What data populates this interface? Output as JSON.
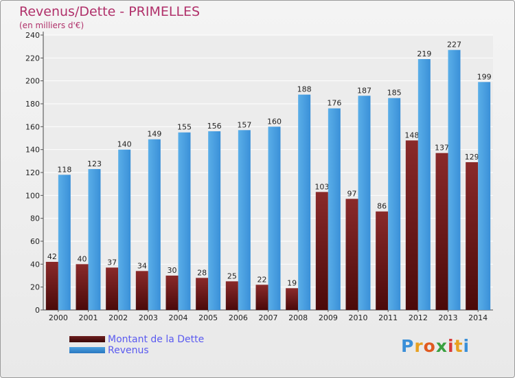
{
  "header": {
    "title": "Revenus/Dette - PRIMELLES",
    "subtitle": "(en milliers d'€)"
  },
  "chart_data": {
    "type": "bar",
    "categories": [
      "2000",
      "2001",
      "2002",
      "2003",
      "2004",
      "2005",
      "2006",
      "2007",
      "2008",
      "2009",
      "2010",
      "2011",
      "2012",
      "2013",
      "2014"
    ],
    "series": [
      {
        "name": "Montant de la Dette",
        "values": [
          42,
          40,
          37,
          34,
          30,
          28,
          25,
          22,
          19,
          103,
          97,
          86,
          148,
          137,
          129
        ],
        "color": "#6e1e1e"
      },
      {
        "name": "Revenus",
        "values": [
          118,
          123,
          140,
          149,
          155,
          156,
          157,
          160,
          188,
          176,
          187,
          185,
          219,
          227,
          199
        ],
        "color": "#4aa0e0"
      }
    ],
    "ylim": [
      0,
      240
    ],
    "yticks": [
      0,
      20,
      40,
      60,
      80,
      100,
      120,
      140,
      160,
      180,
      200,
      220,
      240
    ],
    "grid": true,
    "legend_position": "bottom-left"
  },
  "legend": {
    "items": [
      {
        "label": "Montant de la Dette",
        "color": "#6e1e1e"
      },
      {
        "label": "Revenus",
        "color": "#4aa0e0"
      }
    ]
  },
  "logo": {
    "letters": [
      "P",
      "r",
      "o",
      "x",
      "i",
      "t",
      "i"
    ],
    "colors": [
      "#3a8fd8",
      "#e8a020",
      "#e05a20",
      "#3aa040",
      "#d83a3a",
      "#e8a020",
      "#3a8fd8"
    ]
  }
}
